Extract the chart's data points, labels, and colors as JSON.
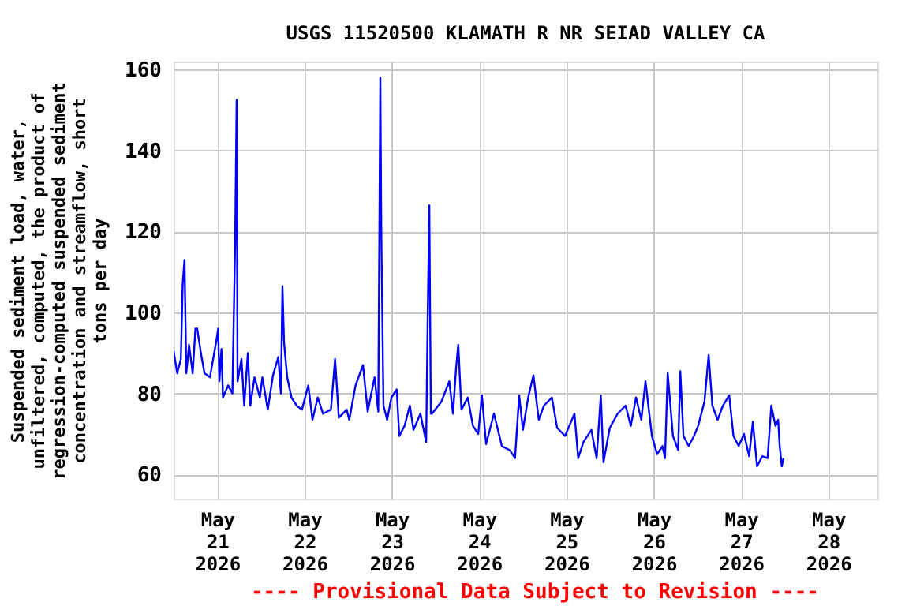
{
  "chart_data": {
    "type": "line",
    "title": "USGS 11520500 KLAMATH R NR SEIAD VALLEY CA",
    "ylabel": "Suspended sediment load, water,\nunfiltered, computed, the product of\nregression-computed suspended sediment\nconcentration and streamflow, short\ntons per day",
    "annotations": [
      "---- Provisional Data Subject to Revision ----"
    ],
    "xlim": [
      "2026-05-20T12:00",
      "2026-05-28T13:30"
    ],
    "xticks": [
      {
        "value": "2026-05-21",
        "label": "May\n21\n2026"
      },
      {
        "value": "2026-05-22",
        "label": "May\n22\n2026"
      },
      {
        "value": "2026-05-23",
        "label": "May\n23\n2026"
      },
      {
        "value": "2026-05-24",
        "label": "May\n24\n2026"
      },
      {
        "value": "2026-05-25",
        "label": "May\n25\n2026"
      },
      {
        "value": "2026-05-26",
        "label": "May\n26\n2026"
      },
      {
        "value": "2026-05-27",
        "label": "May\n27\n2026"
      },
      {
        "value": "2026-05-28",
        "label": "May\n28\n2026"
      }
    ],
    "ylim": [
      54,
      162
    ],
    "yticks": [
      60,
      80,
      100,
      120,
      140,
      160
    ],
    "grid": true,
    "marker": "none",
    "line_style": "solid",
    "series": [
      {
        "color": "#0000ff",
        "x": [
          "2026-05-20T12:00",
          "2026-05-20T13:00",
          "2026-05-20T14:00",
          "2026-05-20T14:30",
          "2026-05-20T15:00",
          "2026-05-20T15:30",
          "2026-05-20T16:15",
          "2026-05-20T17:15",
          "2026-05-20T18:00",
          "2026-05-20T18:30",
          "2026-05-20T19:30",
          "2026-05-20T20:30",
          "2026-05-20T22:00",
          "2026-05-20T23:45",
          "2026-05-21T00:15",
          "2026-05-21T00:35",
          "2026-05-21T01:10",
          "2026-05-21T01:35",
          "2026-05-21T03:00",
          "2026-05-21T04:10",
          "2026-05-21T04:55",
          "2026-05-21T05:20",
          "2026-05-21T05:35",
          "2026-05-21T06:40",
          "2026-05-21T07:25",
          "2026-05-21T08:25",
          "2026-05-21T09:05",
          "2026-05-21T10:15",
          "2026-05-21T11:43",
          "2026-05-21T12:25",
          "2026-05-21T13:53",
          "2026-05-21T15:20",
          "2026-05-21T16:47",
          "2026-05-21T17:30",
          "2026-05-21T17:56",
          "2026-05-21T18:22",
          "2026-05-21T19:14",
          "2026-05-21T20:24",
          "2026-05-21T21:50",
          "2026-05-21T23:17",
          "2026-05-22T01:02",
          "2026-05-22T02:11",
          "2026-05-22T03:38",
          "2026-05-22T05:05",
          "2026-05-22T07:15",
          "2026-05-22T08:24",
          "2026-05-22T09:25",
          "2026-05-22T11:35",
          "2026-05-22T12:18",
          "2026-05-22T14:02",
          "2026-05-22T16:04",
          "2026-05-22T17:22",
          "2026-05-22T19:15",
          "2026-05-22T20:16",
          "2026-05-22T20:50",
          "2026-05-22T21:07",
          "2026-05-22T21:42",
          "2026-05-22T22:43",
          "2026-05-22T23:53",
          "2026-05-23T01:20",
          "2026-05-23T02:03",
          "2026-05-23T03:30",
          "2026-05-23T04:57",
          "2026-05-23T05:58",
          "2026-05-23T07:51",
          "2026-05-23T09:26",
          "2026-05-23T09:52",
          "2026-05-23T10:18",
          "2026-05-23T10:44",
          "2026-05-23T11:02",
          "2026-05-23T13:38",
          "2026-05-23T15:48",
          "2026-05-23T16:49",
          "2026-05-23T17:41",
          "2026-05-23T18:16",
          "2026-05-23T19:08",
          "2026-05-23T20:52",
          "2026-05-23T22:18",
          "2026-05-23T23:45",
          "2026-05-24T00:46",
          "2026-05-24T01:55",
          "2026-05-24T04:05",
          "2026-05-24T06:15",
          "2026-05-24T08:25",
          "2026-05-24T09:52",
          "2026-05-24T11:01",
          "2026-05-24T12:02",
          "2026-05-24T13:29",
          "2026-05-24T14:56",
          "2026-05-24T16:23",
          "2026-05-24T17:50",
          "2026-05-24T20:00",
          "2026-05-24T21:27",
          "2026-05-24T23:37",
          "2026-05-25T02:13",
          "2026-05-25T03:14",
          "2026-05-25T04:41",
          "2026-05-25T06:51",
          "2026-05-25T08:18",
          "2026-05-25T09:27",
          "2026-05-25T10:11",
          "2026-05-25T11:55",
          "2026-05-25T14:05",
          "2026-05-25T16:15",
          "2026-05-25T17:42",
          "2026-05-25T19:08",
          "2026-05-25T20:35",
          "2026-05-25T21:44",
          "2026-05-25T23:30",
          "2026-05-26T00:56",
          "2026-05-26T02:23",
          "2026-05-26T03:06",
          "2026-05-26T03:50",
          "2026-05-26T05:17",
          "2026-05-26T06:43",
          "2026-05-26T07:18",
          "2026-05-26T08:10",
          "2026-05-26T09:37",
          "2026-05-26T11:04",
          "2026-05-26T12:13",
          "2026-05-26T13:57",
          "2026-05-26T15:06",
          "2026-05-26T16:07",
          "2026-05-26T17:34",
          "2026-05-26T19:01",
          "2026-05-26T20:45",
          "2026-05-26T21:55",
          "2026-05-26T23:21",
          "2026-05-27T00:48",
          "2026-05-27T02:14",
          "2026-05-27T03:15",
          "2026-05-27T04:24",
          "2026-05-27T05:51",
          "2026-05-27T07:18",
          "2026-05-27T08:19",
          "2026-05-27T09:29",
          "2026-05-27T10:12",
          "2026-05-27T10:38",
          "2026-05-27T11:12",
          "2026-05-27T11:40"
        ],
        "values": [
          90.5,
          85,
          88.5,
          107,
          113,
          85,
          92,
          85,
          96,
          96,
          90,
          85,
          84,
          93,
          96,
          83,
          91,
          79,
          82,
          80,
          117,
          152.5,
          83,
          88.5,
          77,
          90,
          77,
          84,
          79,
          84,
          76,
          84.5,
          89,
          80,
          106.5,
          92.5,
          84,
          79,
          77,
          76,
          82,
          73.5,
          79,
          75,
          76,
          88.5,
          74,
          76,
          73.5,
          82,
          87,
          75.5,
          84,
          75.5,
          158,
          118.5,
          77,
          73.5,
          79,
          81,
          69.5,
          72,
          77,
          71,
          75,
          68,
          99,
          126.5,
          75,
          75,
          78,
          83,
          75,
          86.5,
          92,
          76,
          79,
          72,
          70,
          79.5,
          67.5,
          75,
          67,
          66,
          64,
          79.5,
          71,
          79,
          84.5,
          73.5,
          77,
          79,
          71.5,
          69.5,
          75,
          64,
          68,
          71,
          64,
          79.5,
          63,
          71.5,
          75,
          77,
          72,
          79,
          73.5,
          83,
          69.5,
          65,
          67,
          64,
          85,
          69.5,
          66,
          85.5,
          69.5,
          67,
          69.5,
          72,
          78,
          89.5,
          77,
          73.5,
          77,
          79.5,
          69.5,
          67,
          70,
          64.5,
          73,
          62,
          64.5,
          64,
          77,
          72,
          73.5,
          67,
          62,
          64
        ]
      }
    ]
  }
}
